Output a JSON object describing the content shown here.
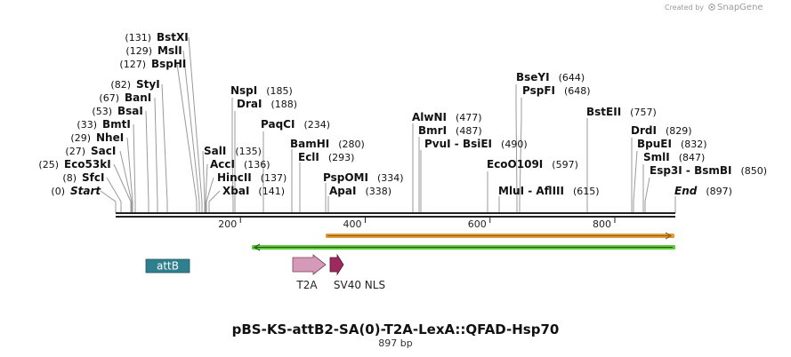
{
  "branding": {
    "created_by": "Created by",
    "logo_text": "SnapGene",
    "logo_icon": "snapgene-logo-icon"
  },
  "map": {
    "title": "pBS-KS-attB2-SA(0)-T2A-LexA::QFAD-Hsp70",
    "length_label": "897 bp",
    "length": 897,
    "ruler_ticks": [
      {
        "label": "200",
        "value": 200
      },
      {
        "label": "400",
        "value": 400
      },
      {
        "label": "600",
        "value": 600
      },
      {
        "label": "800",
        "value": 800
      }
    ],
    "cut_sites": [
      {
        "name": "BstXI",
        "pos_label": "(131)",
        "pos": 131,
        "pos_first": true
      },
      {
        "name": "MslI",
        "pos_label": "(129)",
        "pos": 129,
        "pos_first": true
      },
      {
        "name": "BspHI",
        "pos_label": "(127)",
        "pos": 127,
        "pos_first": true
      },
      {
        "name": "StyI",
        "pos_label": "(82)",
        "pos": 82,
        "pos_first": true
      },
      {
        "name": "BanI",
        "pos_label": "(67)",
        "pos": 67,
        "pos_first": true
      },
      {
        "name": "BsaI",
        "pos_label": "(53)",
        "pos": 53,
        "pos_first": true
      },
      {
        "name": "BmtI",
        "pos_label": "(33)",
        "pos": 33,
        "pos_first": true
      },
      {
        "name": "NheI",
        "pos_label": "(29)",
        "pos": 29,
        "pos_first": true
      },
      {
        "name": "SacI",
        "pos_label": "(27)",
        "pos": 27,
        "pos_first": true
      },
      {
        "name": "Eco53kI",
        "pos_label": "(25)",
        "pos": 25,
        "pos_first": true
      },
      {
        "name": "SfcI",
        "pos_label": "(8)",
        "pos": 8,
        "pos_first": true
      },
      {
        "name": "Start",
        "pos_label": "(0)",
        "pos": 0,
        "pos_first": true,
        "italic": true
      },
      {
        "name": "NspI",
        "pos_label": "(185)",
        "pos": 185
      },
      {
        "name": "DraI",
        "pos_label": "(188)",
        "pos": 188
      },
      {
        "name": "PaqCI",
        "pos_label": "(234)",
        "pos": 234
      },
      {
        "name": "SalI",
        "pos_label": "(135)",
        "pos": 135
      },
      {
        "name": "AccI",
        "pos_label": "(136)",
        "pos": 136
      },
      {
        "name": "HincII",
        "pos_label": "(137)",
        "pos": 137
      },
      {
        "name": "XbaI",
        "pos_label": "(141)",
        "pos": 141
      },
      {
        "name": "BamHI",
        "pos_label": "(280)",
        "pos": 280
      },
      {
        "name": "EclI",
        "pos_label": "(293)",
        "pos": 293
      },
      {
        "name": "PspOMI",
        "pos_label": "(334)",
        "pos": 334
      },
      {
        "name": "ApaI",
        "pos_label": "(338)",
        "pos": 338
      },
      {
        "name": "AlwNI",
        "pos_label": "(477)",
        "pos": 477
      },
      {
        "name": "BmrI",
        "pos_label": "(487)",
        "pos": 487
      },
      {
        "name": "PvuI  -  BsiEI",
        "pos_label": "(490)",
        "pos": 490
      },
      {
        "name": "BseYI",
        "pos_label": "(644)",
        "pos": 644
      },
      {
        "name": "PspFI",
        "pos_label": "(648)",
        "pos": 648
      },
      {
        "name": "EcoO109I",
        "pos_label": "(597)",
        "pos": 597
      },
      {
        "name": "MluI  -  AflIII",
        "pos_label": "(615)",
        "pos": 615
      },
      {
        "name": "BstEII",
        "pos_label": "(757)",
        "pos": 757
      },
      {
        "name": "DrdI",
        "pos_label": "(829)",
        "pos": 829
      },
      {
        "name": "BpuEI",
        "pos_label": "(832)",
        "pos": 832
      },
      {
        "name": "SmlI",
        "pos_label": "(847)",
        "pos": 847
      },
      {
        "name": "Esp3I  -  BsmBI",
        "pos_label": "(850)",
        "pos": 850
      },
      {
        "name": "End",
        "pos_label": "(897)",
        "pos": 897,
        "italic": true
      }
    ],
    "orange_color": "#e39b3a",
    "green_color": "#5dc83a",
    "features": [
      {
        "id": "attB",
        "label": "attB",
        "color": "#2f7f8f",
        "label_inside": true
      },
      {
        "id": "T2A",
        "label": "T2A",
        "color": "#d49ab7"
      },
      {
        "id": "SV40-NLS",
        "label": "SV40 NLS",
        "color": "#9c2a5f"
      }
    ]
  }
}
